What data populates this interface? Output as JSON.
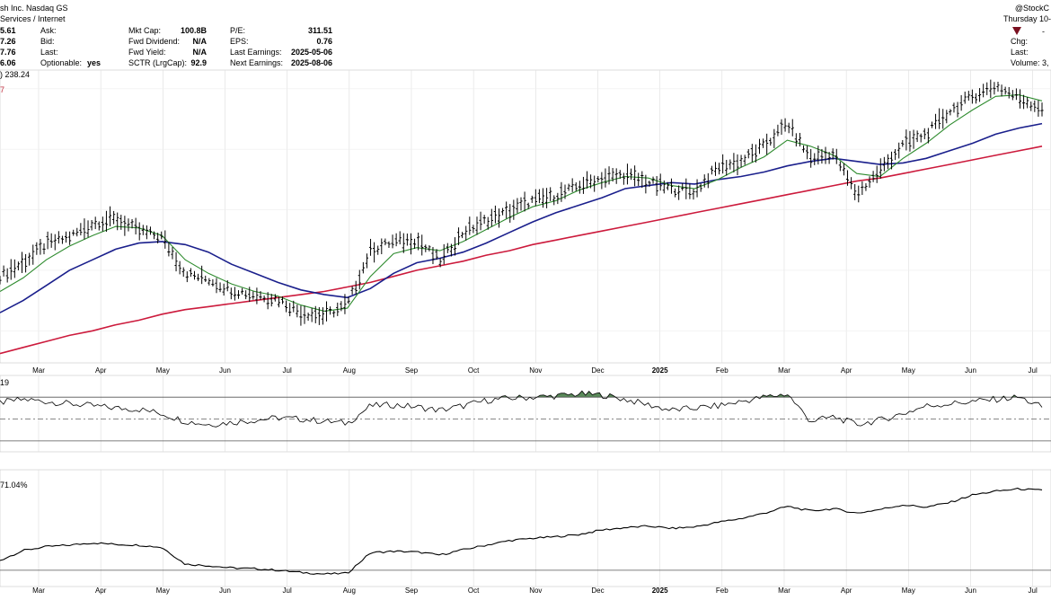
{
  "header": {
    "company": "sh Inc. Nasdaq GS",
    "sector": "Services / Internet",
    "watermark": "@StockC",
    "date": "Thursday 10-",
    "date_extra": "-",
    "chg_label": "Chg:",
    "last_label": "Last:",
    "volume_label": "Volume: 3,",
    "ask_label": "Ask:",
    "bid_label": "Bid:",
    "last2_label": "Last:",
    "optionable_label": "Optionable:",
    "optionable_value": "yes",
    "left_values": [
      "5.61",
      "7.26",
      "7.76",
      "6.06"
    ],
    "stats": [
      {
        "label": "Mkt Cap:",
        "value": "100.8B"
      },
      {
        "label": "Fwd Dividend:",
        "value": "N/A"
      },
      {
        "label": "Fwd Yield:",
        "value": "N/A"
      },
      {
        "label": "SCTR (LrgCap):",
        "value": "92.9"
      }
    ],
    "stats2": [
      {
        "label": "P/E:",
        "value": "311.51"
      },
      {
        "label": "EPS:",
        "value": "0.76"
      },
      {
        "label": "Last Earnings:",
        "value": "2025-05-06"
      },
      {
        "label": "Next Earnings:",
        "value": "2025-08-06"
      }
    ],
    "overlay_label": ") 238.24",
    "overlay_mark": "7",
    "rsi_label": "19",
    "rel_label": "71.04%",
    "down_arrow_color": "#7a1020"
  },
  "chart_data": {
    "type": "line",
    "x_axis": {
      "tick_labels": [
        "Mar",
        "Apr",
        "May",
        "Jun",
        "Jul",
        "Aug",
        "Sep",
        "Oct",
        "Nov",
        "Dec",
        "2025",
        "Feb",
        "Mar",
        "Apr",
        "May",
        "Jun",
        "Jul"
      ]
    },
    "grid": true,
    "colors": {
      "price": "#000000",
      "sma_short": "#2e8b2e",
      "sma_mid": "#1a1f8c",
      "sma_long": "#cc1a3c",
      "rsi_fill": "#5a8a5a",
      "grid": "#dddddd"
    },
    "series": [
      {
        "key": "price",
        "values": [
          0.36,
          0.45,
          0.57,
          0.62,
          0.71,
          0.74,
          0.66,
          0.62,
          0.38,
          0.34,
          0.27,
          0.24,
          0.21,
          0.12,
          0.1,
          0.17,
          0.53,
          0.59,
          0.6,
          0.46,
          0.65,
          0.73,
          0.79,
          0.86,
          0.89,
          0.96,
          1.01,
          1.03,
          0.98,
          0.94,
          0.92,
          1.08,
          1.12,
          1.22,
          1.37,
          1.14,
          1.17,
          0.9,
          1.06,
          1.23,
          1.3,
          1.45,
          1.55,
          1.62,
          1.54,
          1.47
        ]
      },
      {
        "key": "sma_short",
        "values": [
          0.26,
          0.35,
          0.47,
          0.56,
          0.63,
          0.69,
          0.68,
          0.63,
          0.47,
          0.38,
          0.31,
          0.26,
          0.23,
          0.17,
          0.13,
          0.15,
          0.36,
          0.51,
          0.55,
          0.53,
          0.59,
          0.67,
          0.75,
          0.82,
          0.86,
          0.93,
          0.98,
          1.02,
          1.01,
          0.96,
          0.94,
          1.0,
          1.08,
          1.15,
          1.26,
          1.22,
          1.16,
          1.04,
          1.02,
          1.14,
          1.24,
          1.36,
          1.46,
          1.55,
          1.56,
          1.52
        ]
      },
      {
        "key": "sma_mid",
        "values": [
          0.12,
          0.2,
          0.3,
          0.4,
          0.47,
          0.54,
          0.58,
          0.59,
          0.57,
          0.52,
          0.44,
          0.38,
          0.32,
          0.27,
          0.24,
          0.22,
          0.28,
          0.38,
          0.45,
          0.48,
          0.52,
          0.58,
          0.65,
          0.72,
          0.78,
          0.83,
          0.88,
          0.94,
          0.96,
          0.98,
          0.97,
          1.0,
          1.02,
          1.05,
          1.09,
          1.12,
          1.14,
          1.12,
          1.1,
          1.11,
          1.14,
          1.19,
          1.24,
          1.3,
          1.34,
          1.37
        ]
      },
      {
        "key": "sma_long",
        "values": [
          -0.15,
          -0.11,
          -0.07,
          -0.03,
          0.0,
          0.04,
          0.07,
          0.11,
          0.14,
          0.16,
          0.18,
          0.2,
          0.22,
          0.24,
          0.26,
          0.29,
          0.32,
          0.36,
          0.4,
          0.43,
          0.46,
          0.5,
          0.53,
          0.57,
          0.6,
          0.63,
          0.66,
          0.69,
          0.72,
          0.75,
          0.78,
          0.81,
          0.84,
          0.87,
          0.9,
          0.93,
          0.96,
          0.99,
          1.01,
          1.04,
          1.07,
          1.1,
          1.13,
          1.16,
          1.19,
          1.22
        ]
      },
      {
        "key": "rsi",
        "values": [
          65,
          68,
          66,
          64,
          62,
          60,
          59,
          55,
          48,
          45,
          47,
          49,
          51,
          50,
          48,
          46,
          62,
          63,
          61,
          58,
          62,
          67,
          69,
          70,
          71,
          73,
          72,
          68,
          63,
          58,
          60,
          62,
          66,
          70,
          73,
          48,
          52,
          45,
          49,
          55,
          62,
          64,
          66,
          68,
          70,
          61
        ]
      },
      {
        "key": "relative",
        "values": [
          -0.2,
          -0.07,
          -0.02,
          0.0,
          0.03,
          0.01,
          0.0,
          -0.03,
          -0.25,
          -0.27,
          -0.3,
          -0.31,
          -0.33,
          -0.36,
          -0.38,
          -0.37,
          -0.1,
          -0.08,
          -0.09,
          -0.13,
          -0.06,
          0.0,
          0.06,
          0.09,
          0.11,
          0.14,
          0.2,
          0.23,
          0.25,
          0.22,
          0.24,
          0.3,
          0.35,
          0.42,
          0.51,
          0.45,
          0.48,
          0.42,
          0.47,
          0.53,
          0.5,
          0.56,
          0.66,
          0.71,
          0.74,
          0.72
        ]
      }
    ]
  }
}
